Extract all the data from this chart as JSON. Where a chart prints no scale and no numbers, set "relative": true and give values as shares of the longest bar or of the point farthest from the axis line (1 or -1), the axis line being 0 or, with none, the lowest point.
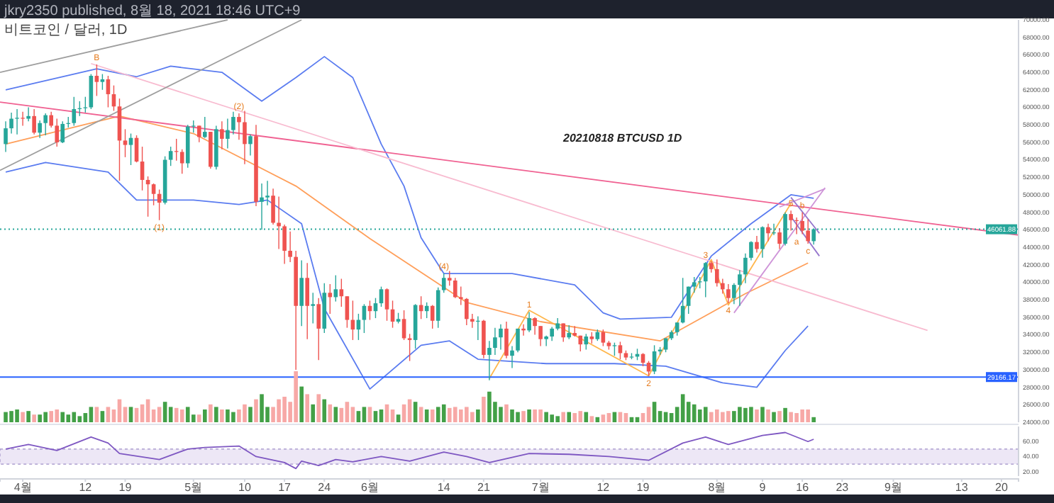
{
  "chart_data": [
    {
      "type": "candlestick",
      "title": "20210818 BTCUSD 1D",
      "subtitle": "비트코인 / 달러, 1D",
      "annotations": [
        "jkry2350 published, 8월 18, 2021 18:46 UTC+9",
        {
          "text": "B",
          "x": "2021-04-14",
          "y": 64900
        },
        {
          "text": "(1)",
          "x": "2021-04-25",
          "y": 47100
        },
        {
          "text": "(2)",
          "x": "2021-05-09",
          "y": 59300
        },
        {
          "text": "(4)",
          "x": "2021-06-14",
          "y": 41000
        },
        {
          "text": "1",
          "x": "2021-06-29",
          "y": 36600
        },
        {
          "text": "2",
          "x": "2021-07-20",
          "y": 29300
        },
        {
          "text": "3",
          "x": "2021-07-30",
          "y": 42300
        },
        {
          "text": "4",
          "x": "2021-08-03",
          "y": 37600
        },
        {
          "text": "5",
          "x": "2021-08-14",
          "y": 48200
        },
        {
          "text": "a",
          "x": "2021-08-15",
          "y": 45500
        },
        {
          "text": "b",
          "x": "2021-08-16",
          "y": 48000
        },
        {
          "text": "c",
          "x": "2021-08-17",
          "y": 44400
        }
      ],
      "xlim": [
        "2021-03-28",
        "2021-09-23"
      ],
      "ylim": [
        24000,
        70000
      ],
      "xticks": [
        {
          "value": "2021-04-01",
          "label": "4월"
        },
        {
          "value": "2021-04-12",
          "label": "12"
        },
        {
          "value": "2021-04-19",
          "label": "19"
        },
        {
          "value": "2021-05-01",
          "label": "5월"
        },
        {
          "value": "2021-05-10",
          "label": "10"
        },
        {
          "value": "2021-05-17",
          "label": "17"
        },
        {
          "value": "2021-05-24",
          "label": "24"
        },
        {
          "value": "2021-06-01",
          "label": "6월"
        },
        {
          "value": "2021-06-14",
          "label": "14"
        },
        {
          "value": "2021-06-21",
          "label": "21"
        },
        {
          "value": "2021-07-01",
          "label": "7월"
        },
        {
          "value": "2021-07-12",
          "label": "12"
        },
        {
          "value": "2021-07-19",
          "label": "19"
        },
        {
          "value": "2021-08-01",
          "label": "8월"
        },
        {
          "value": "2021-08-09",
          "label": "9"
        },
        {
          "value": "2021-08-16",
          "label": "16"
        },
        {
          "value": "2021-08-23",
          "label": "23"
        },
        {
          "value": "2021-09-01",
          "label": "9월"
        },
        {
          "value": "2021-09-13",
          "label": "13"
        },
        {
          "value": "2021-09-20",
          "label": "20"
        }
      ],
      "yticks": [
        {
          "value": 24000,
          "label": "24000.00"
        },
        {
          "value": 26000,
          "label": "26000.00"
        },
        {
          "value": 28000,
          "label": "28000.00"
        },
        {
          "value": 30000,
          "label": "30000.00"
        },
        {
          "value": 32000,
          "label": "32000.00"
        },
        {
          "value": 34000,
          "label": "34000.00"
        },
        {
          "value": 36000,
          "label": "36000.00"
        },
        {
          "value": 38000,
          "label": "38000.00"
        },
        {
          "value": 40000,
          "label": "40000.00"
        },
        {
          "value": 42000,
          "label": "42000.00"
        },
        {
          "value": 44000,
          "label": "44000.00"
        },
        {
          "value": 46000,
          "label": "46000.00"
        },
        {
          "value": 48000,
          "label": "48000.00"
        },
        {
          "value": 50000,
          "label": "50000.00"
        },
        {
          "value": 52000,
          "label": "52000.00"
        },
        {
          "value": 54000,
          "label": "54000.00"
        },
        {
          "value": 56000,
          "label": "56000.00"
        },
        {
          "value": 58000,
          "label": "58000.00"
        },
        {
          "value": 60000,
          "label": "60000.00"
        },
        {
          "value": 62000,
          "label": "62000.00"
        },
        {
          "value": 64000,
          "label": "64000.00"
        },
        {
          "value": 66000,
          "label": "66000.00"
        },
        {
          "value": 68000,
          "label": "68000.00"
        },
        {
          "value": 70000,
          "label": "70000.00"
        }
      ],
      "ref_lines": [
        {
          "axis": "y",
          "value": 29166.17,
          "label": "29166.17",
          "color": "#2962ff",
          "line_style": "solid"
        },
        {
          "axis": "y",
          "value": 46061.88,
          "label": "46061.88",
          "color": "#26a69a",
          "line_style": "dotted"
        }
      ],
      "x": [
        "2021-03-29",
        "2021-03-30",
        "2021-03-31",
        "2021-04-01",
        "2021-04-02",
        "2021-04-03",
        "2021-04-04",
        "2021-04-05",
        "2021-04-06",
        "2021-04-07",
        "2021-04-08",
        "2021-04-09",
        "2021-04-10",
        "2021-04-11",
        "2021-04-12",
        "2021-04-13",
        "2021-04-14",
        "2021-04-15",
        "2021-04-16",
        "2021-04-17",
        "2021-04-18",
        "2021-04-19",
        "2021-04-20",
        "2021-04-21",
        "2021-04-22",
        "2021-04-23",
        "2021-04-24",
        "2021-04-25",
        "2021-04-26",
        "2021-04-27",
        "2021-04-28",
        "2021-04-29",
        "2021-04-30",
        "2021-05-01",
        "2021-05-02",
        "2021-05-03",
        "2021-05-04",
        "2021-05-05",
        "2021-05-06",
        "2021-05-07",
        "2021-05-08",
        "2021-05-09",
        "2021-05-10",
        "2021-05-11",
        "2021-05-12",
        "2021-05-13",
        "2021-05-14",
        "2021-05-15",
        "2021-05-16",
        "2021-05-17",
        "2021-05-18",
        "2021-05-19",
        "2021-05-20",
        "2021-05-21",
        "2021-05-22",
        "2021-05-23",
        "2021-05-24",
        "2021-05-25",
        "2021-05-26",
        "2021-05-27",
        "2021-05-28",
        "2021-05-29",
        "2021-05-30",
        "2021-05-31",
        "2021-06-01",
        "2021-06-02",
        "2021-06-03",
        "2021-06-04",
        "2021-06-05",
        "2021-06-06",
        "2021-06-07",
        "2021-06-08",
        "2021-06-09",
        "2021-06-10",
        "2021-06-11",
        "2021-06-12",
        "2021-06-13",
        "2021-06-14",
        "2021-06-15",
        "2021-06-16",
        "2021-06-17",
        "2021-06-18",
        "2021-06-19",
        "2021-06-20",
        "2021-06-21",
        "2021-06-22",
        "2021-06-23",
        "2021-06-24",
        "2021-06-25",
        "2021-06-26",
        "2021-06-27",
        "2021-06-28",
        "2021-06-29",
        "2021-06-30",
        "2021-07-01",
        "2021-07-02",
        "2021-07-03",
        "2021-07-04",
        "2021-07-05",
        "2021-07-06",
        "2021-07-07",
        "2021-07-08",
        "2021-07-09",
        "2021-07-10",
        "2021-07-11",
        "2021-07-12",
        "2021-07-13",
        "2021-07-14",
        "2021-07-15",
        "2021-07-16",
        "2021-07-17",
        "2021-07-18",
        "2021-07-19",
        "2021-07-20",
        "2021-07-21",
        "2021-07-22",
        "2021-07-23",
        "2021-07-24",
        "2021-07-25",
        "2021-07-26",
        "2021-07-27",
        "2021-07-28",
        "2021-07-29",
        "2021-07-30",
        "2021-07-31",
        "2021-08-01",
        "2021-08-02",
        "2021-08-03",
        "2021-08-04",
        "2021-08-05",
        "2021-08-06",
        "2021-08-07",
        "2021-08-08",
        "2021-08-09",
        "2021-08-10",
        "2021-08-11",
        "2021-08-12",
        "2021-08-13",
        "2021-08-14",
        "2021-08-15",
        "2021-08-16",
        "2021-08-17",
        "2021-08-18"
      ],
      "ohlc": [
        [
          55800,
          58400,
          54900,
          57600
        ],
        [
          57600,
          59400,
          57000,
          58700
        ],
        [
          58700,
          59800,
          56900,
          58800
        ],
        [
          58800,
          59500,
          57900,
          58700
        ],
        [
          58700,
          60000,
          58400,
          59000
        ],
        [
          59000,
          59800,
          56900,
          57100
        ],
        [
          57100,
          58500,
          56500,
          58200
        ],
        [
          58200,
          59300,
          56800,
          59100
        ],
        [
          59100,
          59500,
          57700,
          57900
        ],
        [
          57900,
          58700,
          55500,
          56000
        ],
        [
          56000,
          58400,
          55900,
          58100
        ],
        [
          58100,
          58900,
          57700,
          58200
        ],
        [
          58200,
          61200,
          57900,
          59800
        ],
        [
          59800,
          60700,
          59000,
          59900
        ],
        [
          59900,
          61200,
          59400,
          60000
        ],
        [
          60000,
          63800,
          59800,
          63600
        ],
        [
          63600,
          64900,
          61300,
          62900
        ],
        [
          62900,
          63800,
          62000,
          63200
        ],
        [
          63200,
          63600,
          60000,
          61500
        ],
        [
          61500,
          62500,
          59600,
          60100
        ],
        [
          60100,
          61000,
          51600,
          56200
        ],
        [
          56200,
          57500,
          54300,
          55700
        ],
        [
          55700,
          57000,
          53400,
          56500
        ],
        [
          56500,
          56800,
          53700,
          53800
        ],
        [
          53800,
          55500,
          50500,
          51700
        ],
        [
          51700,
          52100,
          47500,
          51200
        ],
        [
          51200,
          51300,
          48800,
          50100
        ],
        [
          50100,
          50600,
          47100,
          49100
        ],
        [
          49100,
          54400,
          48900,
          54000
        ],
        [
          54000,
          55500,
          53300,
          55000
        ],
        [
          55000,
          56400,
          53900,
          54900
        ],
        [
          54900,
          55200,
          52400,
          53600
        ],
        [
          53600,
          58000,
          53100,
          57800
        ],
        [
          57800,
          58500,
          57100,
          57900
        ],
        [
          57900,
          57900,
          56000,
          56600
        ],
        [
          56600,
          58900,
          56500,
          57200
        ],
        [
          57200,
          57200,
          53000,
          53200
        ],
        [
          53200,
          57900,
          52900,
          57500
        ],
        [
          57500,
          58400,
          55200,
          56400
        ],
        [
          56400,
          58700,
          55300,
          57400
        ],
        [
          57400,
          59500,
          56900,
          58900
        ],
        [
          58900,
          59300,
          56300,
          58300
        ],
        [
          58300,
          59600,
          53500,
          55800
        ],
        [
          55800,
          56900,
          54500,
          56700
        ],
        [
          56700,
          58000,
          48700,
          49200
        ],
        [
          49200,
          51300,
          46000,
          49700
        ],
        [
          49700,
          51600,
          48800,
          49900
        ],
        [
          49900,
          50700,
          46600,
          46800
        ],
        [
          46800,
          49800,
          43800,
          46400
        ],
        [
          46400,
          46600,
          42100,
          43600
        ],
        [
          43600,
          45800,
          42300,
          42900
        ],
        [
          42900,
          43600,
          30000,
          37300
        ],
        [
          37300,
          42500,
          35000,
          40500
        ],
        [
          40500,
          42200,
          33500,
          37300
        ],
        [
          37300,
          38800,
          35300,
          37500
        ],
        [
          37500,
          38200,
          31100,
          34700
        ],
        [
          34700,
          39900,
          34200,
          38800
        ],
        [
          38800,
          39800,
          36400,
          38300
        ],
        [
          38300,
          40800,
          37800,
          39200
        ],
        [
          39200,
          40400,
          37200,
          38400
        ],
        [
          38400,
          38400,
          34800,
          35700
        ],
        [
          35700,
          37900,
          33400,
          34600
        ],
        [
          34600,
          36400,
          33400,
          35700
        ],
        [
          35700,
          37500,
          34200,
          37300
        ],
        [
          37300,
          37900,
          35700,
          36700
        ],
        [
          36700,
          38200,
          35900,
          37600
        ],
        [
          37600,
          39500,
          37200,
          39200
        ],
        [
          39200,
          39300,
          35600,
          36900
        ],
        [
          36900,
          37900,
          34800,
          35500
        ],
        [
          35500,
          36500,
          35300,
          35800
        ],
        [
          35800,
          36800,
          33400,
          33600
        ],
        [
          33600,
          34100,
          31000,
          33400
        ],
        [
          33400,
          37500,
          32400,
          37400
        ],
        [
          37400,
          38400,
          35800,
          36700
        ],
        [
          36700,
          37700,
          35900,
          37300
        ],
        [
          37300,
          37400,
          34700,
          35600
        ],
        [
          35600,
          39400,
          34800,
          39100
        ],
        [
          39100,
          41000,
          38800,
          40500
        ],
        [
          40500,
          41300,
          39600,
          40200
        ],
        [
          40200,
          40500,
          38200,
          38300
        ],
        [
          38300,
          39500,
          37400,
          38100
        ],
        [
          38100,
          38200,
          35100,
          35800
        ],
        [
          35800,
          36400,
          34800,
          35500
        ],
        [
          35500,
          36100,
          33400,
          35600
        ],
        [
          35600,
          35700,
          31300,
          31700
        ],
        [
          31700,
          33300,
          28800,
          32500
        ],
        [
          32500,
          34800,
          31700,
          33700
        ],
        [
          33700,
          35200,
          32300,
          34700
        ],
        [
          34700,
          35500,
          31300,
          31600
        ],
        [
          31600,
          32700,
          30200,
          32200
        ],
        [
          32200,
          34700,
          32000,
          34700
        ],
        [
          34700,
          35200,
          33900,
          34500
        ],
        [
          34500,
          36600,
          34300,
          35900
        ],
        [
          35900,
          36000,
          34000,
          35000
        ],
        [
          35000,
          35000,
          32700,
          33500
        ],
        [
          33500,
          33900,
          32700,
          33800
        ],
        [
          33800,
          34900,
          33300,
          34700
        ],
        [
          34700,
          35900,
          34500,
          35300
        ],
        [
          35300,
          35300,
          33200,
          33700
        ],
        [
          33700,
          35100,
          33500,
          34200
        ],
        [
          34200,
          35000,
          33800,
          33900
        ],
        [
          33900,
          33900,
          32100,
          32900
        ],
        [
          32900,
          34100,
          32300,
          33800
        ],
        [
          33800,
          34300,
          33000,
          33500
        ],
        [
          33500,
          34600,
          33300,
          34300
        ],
        [
          34300,
          34600,
          32700,
          33100
        ],
        [
          33100,
          33300,
          32300,
          32700
        ],
        [
          32700,
          33100,
          31600,
          32800
        ],
        [
          32800,
          33200,
          31200,
          31900
        ],
        [
          31900,
          32200,
          31100,
          31400
        ],
        [
          31400,
          31900,
          31200,
          31500
        ],
        [
          31500,
          32400,
          31100,
          31800
        ],
        [
          31800,
          31900,
          30400,
          30800
        ],
        [
          30800,
          31000,
          29300,
          29800
        ],
        [
          29800,
          32800,
          29500,
          32100
        ],
        [
          32100,
          32600,
          31700,
          32300
        ],
        [
          32300,
          33600,
          32000,
          33600
        ],
        [
          33600,
          34500,
          33400,
          34300
        ],
        [
          34300,
          35400,
          33900,
          35400
        ],
        [
          35400,
          40500,
          35300,
          37300
        ],
        [
          37300,
          39500,
          36400,
          39500
        ],
        [
          39500,
          40600,
          38800,
          40000
        ],
        [
          40000,
          40600,
          39300,
          40100
        ],
        [
          40100,
          42300,
          38300,
          42200
        ],
        [
          42200,
          42400,
          41100,
          41500
        ],
        [
          41500,
          42600,
          39500,
          39900
        ],
        [
          39900,
          40400,
          38700,
          39200
        ],
        [
          39200,
          39800,
          37600,
          38200
        ],
        [
          38200,
          39900,
          37500,
          39700
        ],
        [
          39700,
          41400,
          37300,
          40900
        ],
        [
          40900,
          43300,
          39900,
          42800
        ],
        [
          42800,
          44700,
          42500,
          44600
        ],
        [
          44600,
          45300,
          43400,
          43800
        ],
        [
          43800,
          46400,
          42800,
          46300
        ],
        [
          46300,
          46700,
          44700,
          45600
        ],
        [
          45600,
          46700,
          45400,
          45700
        ],
        [
          45700,
          46200,
          43800,
          44400
        ],
        [
          44400,
          48000,
          44200,
          47800
        ],
        [
          47800,
          48200,
          45900,
          47100
        ],
        [
          47100,
          47400,
          45500,
          47000
        ],
        [
          47000,
          48000,
          45500,
          45900
        ],
        [
          45900,
          47200,
          44400,
          44700
        ],
        [
          44700,
          46100,
          44300,
          46061.88
        ]
      ],
      "colors": [
        "#26a69a",
        "#26a69a",
        "#26a69a",
        "#ef5350",
        "#26a69a",
        "#ef5350",
        "#26a69a",
        "#26a69a",
        "#ef5350",
        "#ef5350",
        "#26a69a",
        "#26a69a",
        "#26a69a",
        "#26a69a",
        "#26a69a",
        "#26a69a",
        "#ef5350",
        "#26a69a",
        "#ef5350",
        "#ef5350",
        "#ef5350",
        "#ef5350",
        "#26a69a",
        "#ef5350",
        "#ef5350",
        "#ef5350",
        "#ef5350",
        "#ef5350",
        "#26a69a",
        "#26a69a",
        "#ef5350",
        "#ef5350",
        "#26a69a",
        "#26a69a",
        "#ef5350",
        "#26a69a",
        "#ef5350",
        "#26a69a",
        "#ef5350",
        "#26a69a",
        "#26a69a",
        "#ef5350",
        "#ef5350",
        "#26a69a",
        "#ef5350",
        "#26a69a",
        "#26a69a",
        "#ef5350",
        "#ef5350",
        "#ef5350",
        "#ef5350",
        "#ef5350",
        "#26a69a",
        "#ef5350",
        "#26a69a",
        "#ef5350",
        "#26a69a",
        "#ef5350",
        "#26a69a",
        "#ef5350",
        "#ef5350",
        "#ef5350",
        "#26a69a",
        "#26a69a",
        "#ef5350",
        "#26a69a",
        "#26a69a",
        "#ef5350",
        "#ef5350",
        "#26a69a",
        "#ef5350",
        "#ef5350",
        "#26a69a",
        "#ef5350",
        "#26a69a",
        "#ef5350",
        "#26a69a",
        "#26a69a",
        "#ef5350",
        "#ef5350",
        "#ef5350",
        "#ef5350",
        "#ef5350",
        "#26a69a",
        "#ef5350",
        "#26a69a",
        "#26a69a",
        "#26a69a",
        "#ef5350",
        "#26a69a",
        "#26a69a",
        "#ef5350",
        "#26a69a",
        "#ef5350",
        "#ef5350",
        "#26a69a",
        "#26a69a",
        "#26a69a",
        "#ef5350",
        "#26a69a",
        "#ef5350",
        "#ef5350",
        "#26a69a",
        "#ef5350",
        "#26a69a",
        "#ef5350",
        "#ef5350",
        "#26a69a",
        "#ef5350",
        "#ef5350",
        "#26a69a",
        "#26a69a",
        "#ef5350",
        "#ef5350",
        "#26a69a",
        "#26a69a",
        "#26a69a",
        "#26a69a",
        "#26a69a",
        "#26a69a",
        "#26a69a",
        "#26a69a",
        "#26a69a",
        "#26a69a",
        "#ef5350",
        "#ef5350",
        "#ef5350",
        "#ef5350",
        "#26a69a",
        "#26a69a",
        "#26a69a",
        "#26a69a",
        "#ef5350",
        "#26a69a",
        "#ef5350",
        "#26a69a",
        "#ef5350",
        "#26a69a",
        "#ef5350",
        "#ef5350",
        "#ef5350",
        "#ef5350",
        "#26a69a"
      ],
      "series": [
        {
          "type": "line",
          "color": "#5b7cf0",
          "x": [
            "2021-03-29",
            "2021-04-14",
            "2021-04-21",
            "2021-04-27",
            "2021-05-06",
            "2021-05-13",
            "2021-05-19",
            "2021-05-24",
            "2021-05-29",
            "2021-06-03",
            "2021-06-07",
            "2021-06-10",
            "2021-06-14",
            "2021-06-26",
            "2021-07-07",
            "2021-07-12",
            "2021-07-15",
            "2021-07-24",
            "2021-07-31",
            "2021-08-07",
            "2021-08-14",
            "2021-08-18"
          ],
          "values": [
            62000,
            64400,
            63500,
            64700,
            64000,
            60700,
            63400,
            65800,
            63400,
            55800,
            51000,
            45100,
            41000,
            41000,
            39700,
            36500,
            35800,
            36000,
            43000,
            46700,
            50000,
            49600
          ]
        },
        {
          "type": "line",
          "color": "#5b7cf0",
          "x": [
            "2021-03-29",
            "2021-04-05",
            "2021-04-16",
            "2021-04-21",
            "2021-05-01",
            "2021-05-09",
            "2021-05-14",
            "2021-05-20",
            "2021-05-24",
            "2021-06-01",
            "2021-06-10",
            "2021-06-15",
            "2021-06-20",
            "2021-07-02",
            "2021-07-14",
            "2021-07-23",
            "2021-08-02",
            "2021-08-08",
            "2021-08-13",
            "2021-08-17"
          ],
          "values": [
            52600,
            53700,
            52600,
            49400,
            49400,
            48900,
            49400,
            46700,
            37000,
            27800,
            32800,
            33300,
            31200,
            30700,
            30700,
            30400,
            28500,
            28000,
            32200,
            35000
          ]
        },
        {
          "type": "line",
          "color": "#ff9f5a",
          "x": [
            "2021-03-29",
            "2021-04-13",
            "2021-04-18",
            "2021-05-01",
            "2021-05-19",
            "2021-06-01",
            "2021-06-18",
            "2021-07-01",
            "2021-07-22",
            "2021-08-06",
            "2021-08-17"
          ],
          "values": [
            55800,
            58200,
            59000,
            57000,
            51000,
            45000,
            37700,
            35500,
            33300,
            38700,
            42200
          ]
        },
        {
          "type": "line",
          "color": "#f06292",
          "line_style": "solid",
          "x": [
            "2021-03-28",
            "2021-09-23"
          ],
          "values": [
            60600,
            45400
          ]
        },
        {
          "type": "line",
          "color": "#f8bbd0",
          "line_style": "solid",
          "x": [
            "2021-04-13",
            "2021-09-07"
          ],
          "values": [
            65000,
            34500
          ]
        },
        {
          "type": "line",
          "color": "#9e9e9e",
          "line_style": "solid",
          "x": [
            "2021-03-28",
            "2021-05-07"
          ],
          "values": [
            64000,
            70000
          ]
        },
        {
          "type": "line",
          "color": "#9e9e9e",
          "line_style": "solid",
          "x": [
            "2021-03-28",
            "2021-05-20"
          ],
          "values": [
            52800,
            70000
          ]
        },
        {
          "type": "line",
          "color": "#ce93d8",
          "line_style": "solid",
          "x": [
            "2021-08-04",
            "2021-08-20"
          ],
          "values": [
            36500,
            50800
          ]
        },
        {
          "type": "line",
          "color": "#ce93d8",
          "line_style": "solid",
          "x": [
            "2021-08-12",
            "2021-08-20"
          ],
          "values": [
            48600,
            50700
          ]
        },
        {
          "type": "line",
          "color": "#9575cd",
          "line_style": "solid",
          "x": [
            "2021-08-14",
            "2021-08-19"
          ],
          "values": [
            49700,
            45600
          ]
        },
        {
          "type": "line",
          "color": "#9575cd",
          "line_style": "solid",
          "x": [
            "2021-08-14",
            "2021-08-19"
          ],
          "values": [
            47500,
            43000
          ]
        },
        {
          "type": "line",
          "color": "#ffb74d",
          "line_style": "solid",
          "x": [
            "2021-06-22",
            "2021-06-29",
            "2021-07-20",
            "2021-07-31",
            "2021-08-03",
            "2021-08-14"
          ],
          "values": [
            29000,
            36800,
            29300,
            42600,
            37400,
            49000
          ]
        }
      ]
    },
    {
      "type": "bar",
      "relative": true,
      "tick_labels": false,
      "xlim": [
        "2021-03-28",
        "2021-09-23"
      ],
      "x": [
        "2021-03-29",
        "2021-03-30",
        "2021-03-31",
        "2021-04-01",
        "2021-04-02",
        "2021-04-03",
        "2021-04-04",
        "2021-04-05",
        "2021-04-06",
        "2021-04-07",
        "2021-04-08",
        "2021-04-09",
        "2021-04-10",
        "2021-04-11",
        "2021-04-12",
        "2021-04-13",
        "2021-04-14",
        "2021-04-15",
        "2021-04-16",
        "2021-04-17",
        "2021-04-18",
        "2021-04-19",
        "2021-04-20",
        "2021-04-21",
        "2021-04-22",
        "2021-04-23",
        "2021-04-24",
        "2021-04-25",
        "2021-04-26",
        "2021-04-27",
        "2021-04-28",
        "2021-04-29",
        "2021-04-30",
        "2021-05-01",
        "2021-05-02",
        "2021-05-03",
        "2021-05-04",
        "2021-05-05",
        "2021-05-06",
        "2021-05-07",
        "2021-05-08",
        "2021-05-09",
        "2021-05-10",
        "2021-05-11",
        "2021-05-12",
        "2021-05-13",
        "2021-05-14",
        "2021-05-15",
        "2021-05-16",
        "2021-05-17",
        "2021-05-18",
        "2021-05-19",
        "2021-05-20",
        "2021-05-21",
        "2021-05-22",
        "2021-05-23",
        "2021-05-24",
        "2021-05-25",
        "2021-05-26",
        "2021-05-27",
        "2021-05-28",
        "2021-05-29",
        "2021-05-30",
        "2021-05-31",
        "2021-06-01",
        "2021-06-02",
        "2021-06-03",
        "2021-06-04",
        "2021-06-05",
        "2021-06-06",
        "2021-06-07",
        "2021-06-08",
        "2021-06-09",
        "2021-06-10",
        "2021-06-11",
        "2021-06-12",
        "2021-06-13",
        "2021-06-14",
        "2021-06-15",
        "2021-06-16",
        "2021-06-17",
        "2021-06-18",
        "2021-06-19",
        "2021-06-20",
        "2021-06-21",
        "2021-06-22",
        "2021-06-23",
        "2021-06-24",
        "2021-06-25",
        "2021-06-26",
        "2021-06-27",
        "2021-06-28",
        "2021-06-29",
        "2021-06-30",
        "2021-07-01",
        "2021-07-02",
        "2021-07-03",
        "2021-07-04",
        "2021-07-05",
        "2021-07-06",
        "2021-07-07",
        "2021-07-08",
        "2021-07-09",
        "2021-07-10",
        "2021-07-11",
        "2021-07-12",
        "2021-07-13",
        "2021-07-14",
        "2021-07-15",
        "2021-07-16",
        "2021-07-17",
        "2021-07-18",
        "2021-07-19",
        "2021-07-20",
        "2021-07-21",
        "2021-07-22",
        "2021-07-23",
        "2021-07-24",
        "2021-07-25",
        "2021-07-26",
        "2021-07-27",
        "2021-07-28",
        "2021-07-29",
        "2021-07-30",
        "2021-07-31",
        "2021-08-01",
        "2021-08-02",
        "2021-08-03",
        "2021-08-04",
        "2021-08-05",
        "2021-08-06",
        "2021-08-07",
        "2021-08-08",
        "2021-08-09",
        "2021-08-10",
        "2021-08-11",
        "2021-08-12",
        "2021-08-13",
        "2021-08-14",
        "2021-08-15",
        "2021-08-16",
        "2021-08-17",
        "2021-08-18"
      ],
      "values": [
        0.2,
        0.22,
        0.25,
        0.2,
        0.22,
        0.15,
        0.15,
        0.2,
        0.22,
        0.25,
        0.2,
        0.15,
        0.2,
        0.12,
        0.18,
        0.3,
        0.3,
        0.22,
        0.3,
        0.25,
        0.45,
        0.3,
        0.3,
        0.28,
        0.35,
        0.45,
        0.25,
        0.3,
        0.4,
        0.3,
        0.28,
        0.25,
        0.3,
        0.15,
        0.15,
        0.25,
        0.35,
        0.3,
        0.25,
        0.25,
        0.2,
        0.25,
        0.35,
        0.3,
        0.45,
        0.55,
        0.3,
        0.3,
        0.45,
        0.5,
        0.4,
        1.0,
        0.7,
        0.55,
        0.35,
        0.55,
        0.45,
        0.35,
        0.3,
        0.28,
        0.4,
        0.3,
        0.22,
        0.3,
        0.3,
        0.22,
        0.25,
        0.35,
        0.25,
        0.15,
        0.35,
        0.45,
        0.4,
        0.3,
        0.25,
        0.25,
        0.3,
        0.35,
        0.28,
        0.3,
        0.25,
        0.3,
        0.2,
        0.25,
        0.5,
        0.6,
        0.4,
        0.3,
        0.35,
        0.25,
        0.2,
        0.22,
        0.25,
        0.25,
        0.25,
        0.2,
        0.15,
        0.12,
        0.2,
        0.2,
        0.18,
        0.22,
        0.2,
        0.12,
        0.1,
        0.15,
        0.18,
        0.2,
        0.2,
        0.18,
        0.1,
        0.1,
        0.18,
        0.3,
        0.4,
        0.22,
        0.2,
        0.18,
        0.3,
        0.55,
        0.4,
        0.35,
        0.25,
        0.3,
        0.2,
        0.25,
        0.2,
        0.22,
        0.22,
        0.3,
        0.28,
        0.3,
        0.25,
        0.3,
        0.25,
        0.2,
        0.22,
        0.28,
        0.2,
        0.18,
        0.25,
        0.25,
        0.1
      ],
      "colors": [
        "#43a047",
        "#43a047",
        "#43a047",
        "#f7a8a6",
        "#43a047",
        "#f7a8a6",
        "#43a047",
        "#43a047",
        "#f7a8a6",
        "#f7a8a6",
        "#43a047",
        "#43a047",
        "#43a047",
        "#43a047",
        "#43a047",
        "#43a047",
        "#f7a8a6",
        "#43a047",
        "#f7a8a6",
        "#f7a8a6",
        "#f7a8a6",
        "#f7a8a6",
        "#43a047",
        "#f7a8a6",
        "#f7a8a6",
        "#f7a8a6",
        "#f7a8a6",
        "#f7a8a6",
        "#43a047",
        "#43a047",
        "#f7a8a6",
        "#f7a8a6",
        "#43a047",
        "#43a047",
        "#f7a8a6",
        "#43a047",
        "#f7a8a6",
        "#43a047",
        "#f7a8a6",
        "#43a047",
        "#43a047",
        "#f7a8a6",
        "#f7a8a6",
        "#43a047",
        "#f7a8a6",
        "#43a047",
        "#43a047",
        "#f7a8a6",
        "#f7a8a6",
        "#f7a8a6",
        "#f7a8a6",
        "#f7a8a6",
        "#43a047",
        "#f7a8a6",
        "#43a047",
        "#f7a8a6",
        "#43a047",
        "#f7a8a6",
        "#43a047",
        "#f7a8a6",
        "#f7a8a6",
        "#f7a8a6",
        "#43a047",
        "#43a047",
        "#f7a8a6",
        "#43a047",
        "#43a047",
        "#f7a8a6",
        "#f7a8a6",
        "#43a047",
        "#f7a8a6",
        "#f7a8a6",
        "#43a047",
        "#f7a8a6",
        "#43a047",
        "#f7a8a6",
        "#43a047",
        "#43a047",
        "#f7a8a6",
        "#f7a8a6",
        "#f7a8a6",
        "#f7a8a6",
        "#f7a8a6",
        "#43a047",
        "#f7a8a6",
        "#43a047",
        "#43a047",
        "#43a047",
        "#f7a8a6",
        "#43a047",
        "#43a047",
        "#f7a8a6",
        "#43a047",
        "#f7a8a6",
        "#f7a8a6",
        "#43a047",
        "#43a047",
        "#43a047",
        "#f7a8a6",
        "#43a047",
        "#f7a8a6",
        "#f7a8a6",
        "#43a047",
        "#f7a8a6",
        "#43a047",
        "#f7a8a6",
        "#f7a8a6",
        "#43a047",
        "#f7a8a6",
        "#f7a8a6",
        "#43a047",
        "#43a047",
        "#f7a8a6",
        "#f7a8a6",
        "#43a047",
        "#43a047",
        "#43a047",
        "#43a047",
        "#43a047",
        "#43a047",
        "#43a047",
        "#43a047",
        "#43a047",
        "#43a047",
        "#f7a8a6",
        "#f7a8a6",
        "#f7a8a6",
        "#f7a8a6",
        "#43a047",
        "#43a047",
        "#43a047",
        "#43a047",
        "#f7a8a6",
        "#43a047",
        "#f7a8a6",
        "#43a047",
        "#f7a8a6",
        "#43a047",
        "#f7a8a6",
        "#f7a8a6",
        "#f7a8a6",
        "#f7a8a6",
        "#43a047"
      ]
    },
    {
      "type": "line",
      "color": "#7e57c2",
      "tick_labels": "y",
      "xlim": [
        "2021-03-28",
        "2021-09-23"
      ],
      "ylim": [
        14,
        80
      ],
      "yticks": [
        {
          "value": 20,
          "label": "20.00"
        },
        {
          "value": 40,
          "label": "40.00"
        },
        {
          "value": 60,
          "label": "60.00"
        }
      ],
      "bands": [
        {
          "axis": "y",
          "from": 30,
          "to": 50,
          "color": "#ede7f6"
        }
      ],
      "x": [
        "2021-03-29",
        "2021-04-02",
        "2021-04-07",
        "2021-04-13",
        "2021-04-16",
        "2021-04-18",
        "2021-04-25",
        "2021-04-30",
        "2021-05-03",
        "2021-05-09",
        "2021-05-12",
        "2021-05-17",
        "2021-05-19",
        "2021-05-20",
        "2021-05-23",
        "2021-05-26",
        "2021-05-29",
        "2021-06-03",
        "2021-06-08",
        "2021-06-14",
        "2021-06-18",
        "2021-06-22",
        "2021-06-29",
        "2021-07-06",
        "2021-07-13",
        "2021-07-20",
        "2021-07-26",
        "2021-07-30",
        "2021-08-03",
        "2021-08-09",
        "2021-08-13",
        "2021-08-17",
        "2021-08-18"
      ],
      "values": [
        50,
        56,
        48,
        66,
        58,
        44,
        36,
        50,
        52,
        54,
        40,
        32,
        24,
        34,
        28,
        36,
        33,
        40,
        34,
        46,
        40,
        32,
        44,
        43,
        40,
        35,
        58,
        66,
        56,
        68,
        72,
        60,
        63
      ]
    }
  ]
}
